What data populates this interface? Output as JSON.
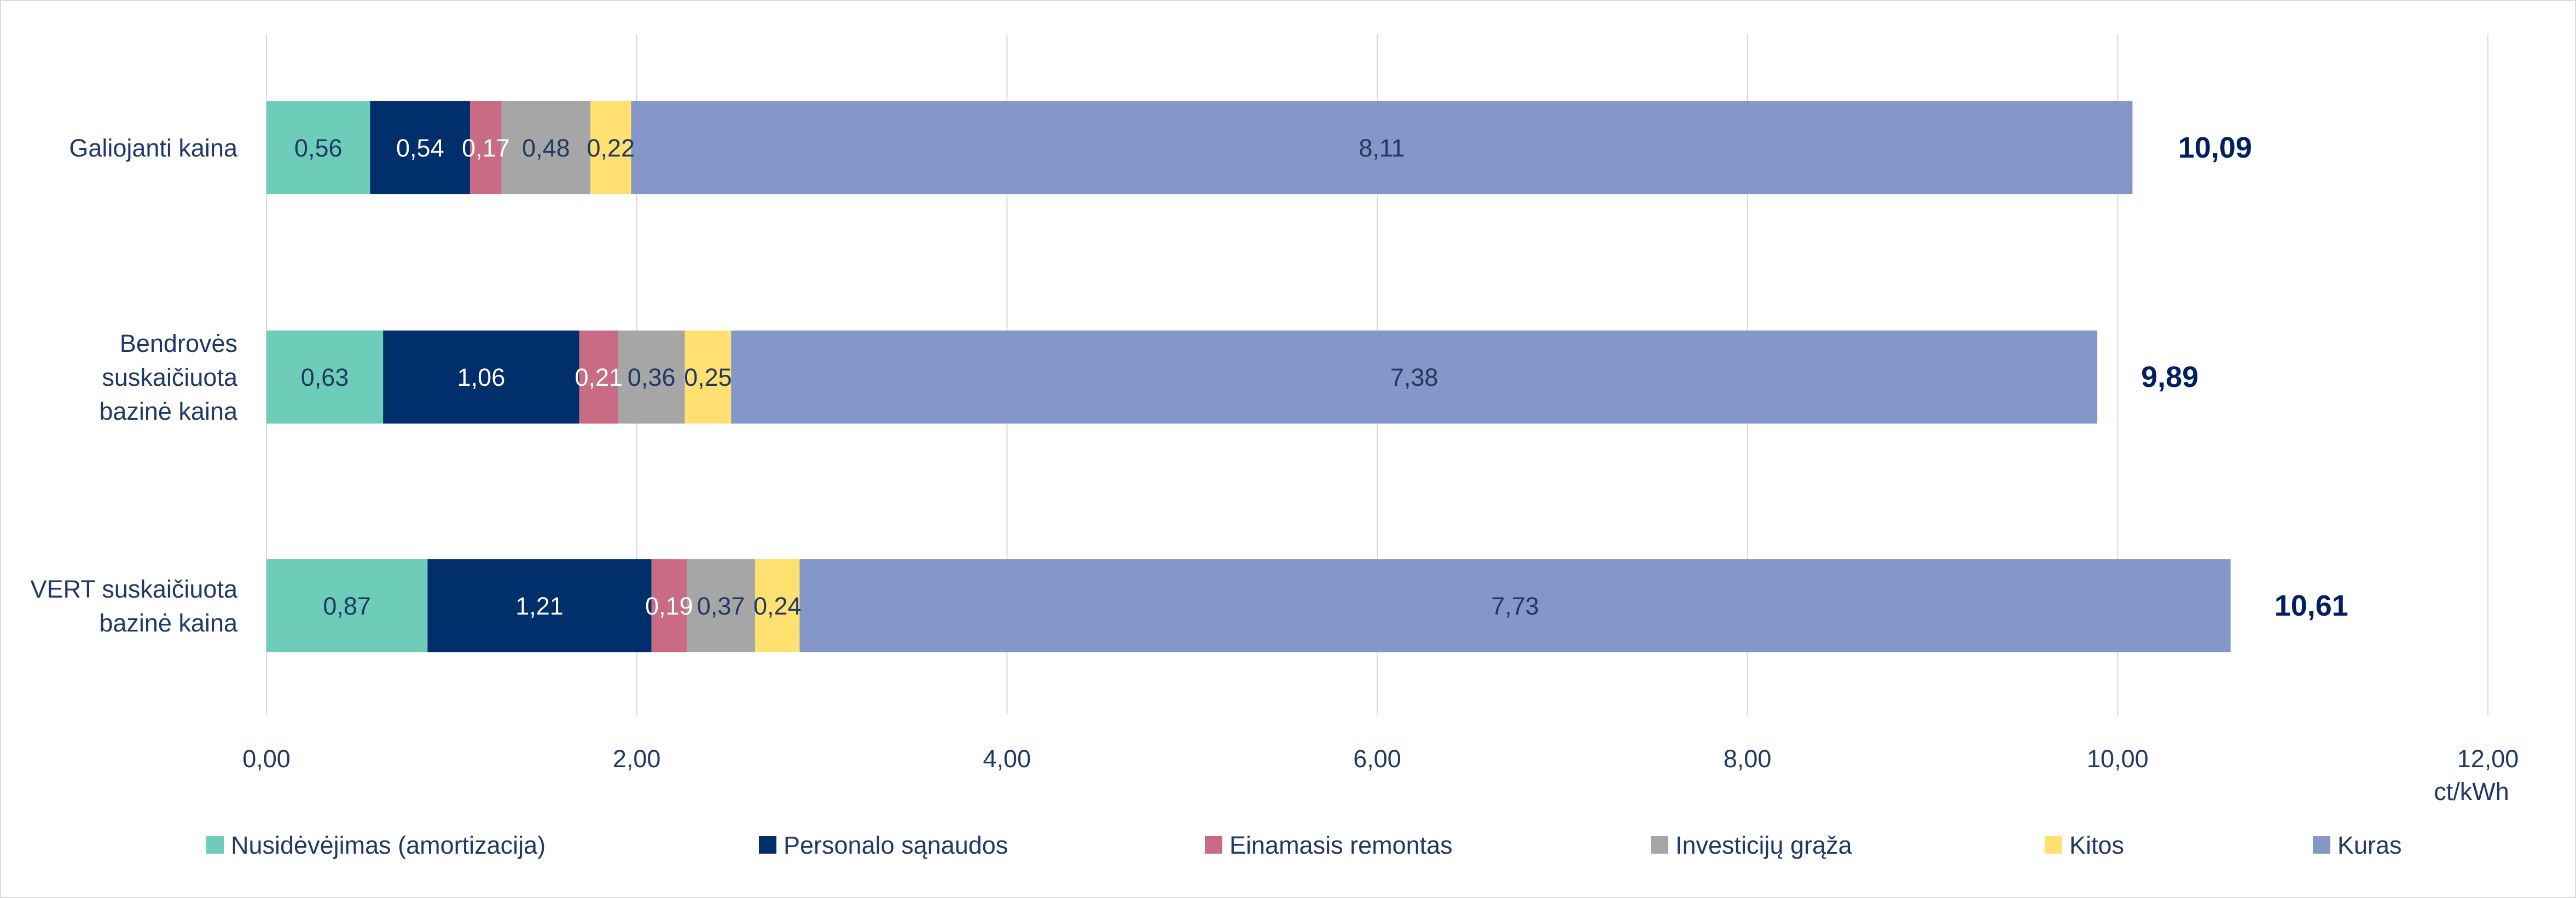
{
  "chart_data": {
    "type": "bar",
    "orientation": "horizontal",
    "stacked": true,
    "categories": [
      "Galiojanti kaina",
      "Bendrovės suskaičiuota bazinė kaina",
      "VERT suskaičiuota bazinė kaina"
    ],
    "category_lines": [
      [
        "Galiojanti kaina"
      ],
      [
        "Bendrovės",
        "suskaičiuota",
        "bazinė kaina"
      ],
      [
        "VERT suskaičiuota",
        "bazinė kaina"
      ]
    ],
    "series": [
      {
        "name": "Nusidėvėjimas (amortizacija)",
        "color": "#6dcdb8",
        "label_color": "#1f3864",
        "values": [
          0.56,
          0.63,
          0.87
        ],
        "labels": [
          "0,56",
          "0,63",
          "0,87"
        ]
      },
      {
        "name": "Personalo sąnaudos",
        "color": "#002f6c",
        "label_color": "#ffffff",
        "values": [
          0.54,
          1.06,
          1.21
        ],
        "labels": [
          "0,54",
          "1,06",
          "1,21"
        ]
      },
      {
        "name": "Einamasis remontas",
        "color": "#c96b85",
        "label_color": "#ffffff",
        "values": [
          0.17,
          0.21,
          0.19
        ],
        "labels": [
          "0,17",
          "0,21",
          "0,19"
        ]
      },
      {
        "name": "Investicijų grąža",
        "color": "#a6a6a6",
        "label_color": "#1f3864",
        "values": [
          0.48,
          0.36,
          0.37
        ],
        "labels": [
          "0,48",
          "0,36",
          "0,37"
        ]
      },
      {
        "name": "Kitos",
        "color": "#ffe070",
        "label_color": "#1f3864",
        "values": [
          0.22,
          0.25,
          0.24
        ],
        "labels": [
          "0,22",
          "0,25",
          "0,24"
        ]
      },
      {
        "name": "Kuras",
        "color": "#8497c8",
        "label_color": "#1f3864",
        "values": [
          8.11,
          7.38,
          7.73
        ],
        "labels": [
          "8,11",
          "7,38",
          "7,73"
        ]
      }
    ],
    "totals": [
      10.09,
      9.89,
      10.61
    ],
    "total_labels": [
      "10,09",
      "9,89",
      "10,61"
    ],
    "xlim": [
      0,
      12
    ],
    "x_ticks": [
      0,
      2,
      4,
      6,
      8,
      10,
      12
    ],
    "x_tick_labels": [
      "0,00",
      "2,00",
      "4,00",
      "6,00",
      "8,00",
      "10,00",
      "12,00"
    ],
    "x_unit": "ct/kWh",
    "title": "",
    "grid": true,
    "legend_position": "bottom"
  }
}
